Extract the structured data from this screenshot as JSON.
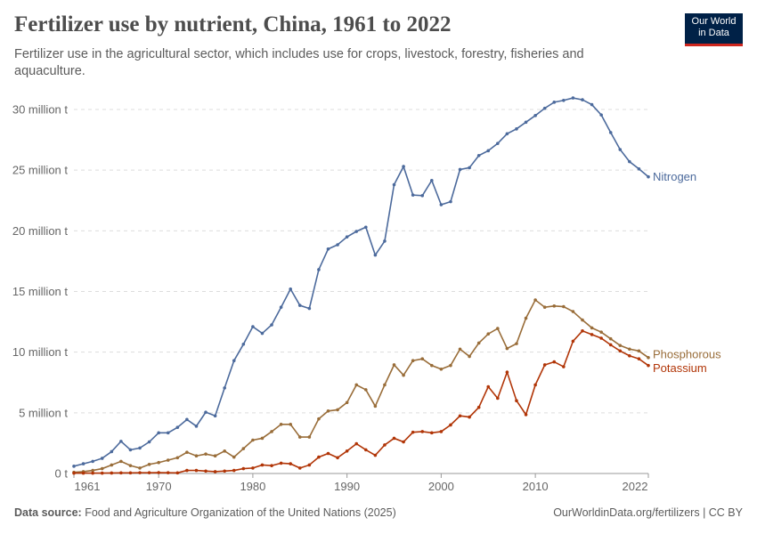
{
  "header": {
    "title": "Fertilizer use by nutrient, China, 1961 to 2022",
    "subtitle": "Fertilizer use in the agricultural sector, which includes use for crops, livestock, forestry, fisheries and aquaculture.",
    "logo_line1": "Our World",
    "logo_line2": "in Data"
  },
  "footer": {
    "source_label": "Data source:",
    "source_text": "Food and Agriculture Organization of the United Nations (2025)",
    "url_license": "OurWorldinData.org/fertilizers | CC BY"
  },
  "chart_data": {
    "type": "line",
    "title": "Fertilizer use by nutrient, China, 1961 to 2022",
    "xlabel": "",
    "ylabel": "",
    "xlim": [
      1961,
      2022
    ],
    "ylim": [
      0,
      30000000
    ],
    "grid": "horizontal-dashed",
    "legend": "inline-right",
    "y_ticks": [
      {
        "value": 0,
        "label": "0 t"
      },
      {
        "value": 5000000,
        "label": "5 million t"
      },
      {
        "value": 10000000,
        "label": "10 million t"
      },
      {
        "value": 15000000,
        "label": "15 million t"
      },
      {
        "value": 20000000,
        "label": "20 million t"
      },
      {
        "value": 25000000,
        "label": "25 million t"
      },
      {
        "value": 30000000,
        "label": "30 million t"
      }
    ],
    "x_ticks": [
      "1961",
      "1970",
      "1980",
      "1990",
      "2000",
      "2010",
      "2022"
    ],
    "x": [
      1961,
      1962,
      1963,
      1964,
      1965,
      1966,
      1967,
      1968,
      1969,
      1970,
      1971,
      1972,
      1973,
      1974,
      1975,
      1976,
      1977,
      1978,
      1979,
      1980,
      1981,
      1982,
      1983,
      1984,
      1985,
      1986,
      1987,
      1988,
      1989,
      1990,
      1991,
      1992,
      1993,
      1994,
      1995,
      1996,
      1997,
      1998,
      1999,
      2000,
      2001,
      2002,
      2003,
      2004,
      2005,
      2006,
      2007,
      2008,
      2009,
      2010,
      2011,
      2012,
      2013,
      2014,
      2015,
      2016,
      2017,
      2018,
      2019,
      2020,
      2021,
      2022
    ],
    "series": [
      {
        "name": "Nitrogen",
        "color": "#4c6a9c",
        "unit": "million t",
        "values": [
          0.6,
          0.8,
          1.0,
          1.25,
          1.8,
          2.65,
          1.95,
          2.1,
          2.6,
          3.35,
          3.35,
          3.8,
          4.45,
          3.9,
          5.05,
          4.75,
          7.05,
          9.3,
          10.65,
          12.1,
          11.55,
          12.25,
          13.7,
          15.2,
          13.85,
          13.6,
          16.8,
          18.5,
          18.85,
          19.5,
          19.95,
          20.3,
          18.0,
          19.15,
          23.8,
          25.3,
          22.95,
          22.9,
          24.15,
          22.15,
          22.4,
          25.05,
          25.2,
          26.2,
          26.6,
          27.2,
          28.0,
          28.4,
          28.95,
          29.5,
          30.1,
          30.6,
          30.75,
          30.95,
          30.8,
          30.4,
          29.55,
          28.1,
          26.7,
          25.7,
          25.1,
          24.45
        ]
      },
      {
        "name": "Phosphorous",
        "color": "#996d39",
        "unit": "million t",
        "values": [
          0.1,
          0.15,
          0.25,
          0.4,
          0.7,
          1.0,
          0.65,
          0.45,
          0.75,
          0.9,
          1.1,
          1.3,
          1.75,
          1.45,
          1.6,
          1.45,
          1.85,
          1.35,
          2.05,
          2.75,
          2.9,
          3.45,
          4.05,
          4.05,
          3.0,
          3.0,
          4.5,
          5.15,
          5.25,
          5.85,
          7.3,
          6.9,
          5.55,
          7.3,
          8.95,
          8.1,
          9.3,
          9.45,
          8.9,
          8.6,
          8.9,
          10.25,
          9.65,
          10.75,
          11.5,
          11.95,
          10.3,
          10.7,
          12.8,
          14.3,
          13.7,
          13.8,
          13.75,
          13.35,
          12.65,
          12.0,
          11.65,
          11.1,
          10.55,
          10.25,
          10.1,
          9.55
        ]
      },
      {
        "name": "Potassium",
        "color": "#b13507",
        "unit": "million t",
        "values": [
          0.03,
          0.03,
          0.03,
          0.03,
          0.04,
          0.05,
          0.05,
          0.06,
          0.06,
          0.07,
          0.06,
          0.05,
          0.25,
          0.25,
          0.2,
          0.15,
          0.2,
          0.25,
          0.4,
          0.45,
          0.7,
          0.65,
          0.85,
          0.8,
          0.45,
          0.7,
          1.35,
          1.65,
          1.3,
          1.85,
          2.45,
          1.95,
          1.5,
          2.35,
          2.9,
          2.6,
          3.4,
          3.45,
          3.35,
          3.45,
          4.0,
          4.75,
          4.65,
          5.45,
          7.15,
          6.2,
          8.35,
          6.0,
          4.85,
          7.3,
          8.95,
          9.2,
          8.8,
          10.9,
          11.75,
          11.45,
          11.15,
          10.6,
          10.1,
          9.7,
          9.45,
          8.9
        ]
      }
    ]
  }
}
